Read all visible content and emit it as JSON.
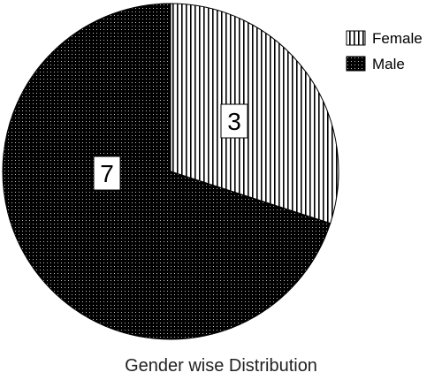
{
  "chart_data": {
    "type": "pie",
    "title": "Gender wise Distribution",
    "categories": [
      "Female",
      "Male"
    ],
    "values": [
      3,
      7
    ],
    "data_labels": [
      "3",
      "7"
    ],
    "legend_position": "top-right",
    "start_angle": "12 o'clock, clockwise",
    "patterns": {
      "Female": "vertical-stripes",
      "Male": "dotted-black"
    },
    "colors": {
      "Female_bg": "#ffffff",
      "Female_stripe": "#000000",
      "Male_bg": "#000000",
      "Male_dot": "#bfbfbf"
    }
  }
}
